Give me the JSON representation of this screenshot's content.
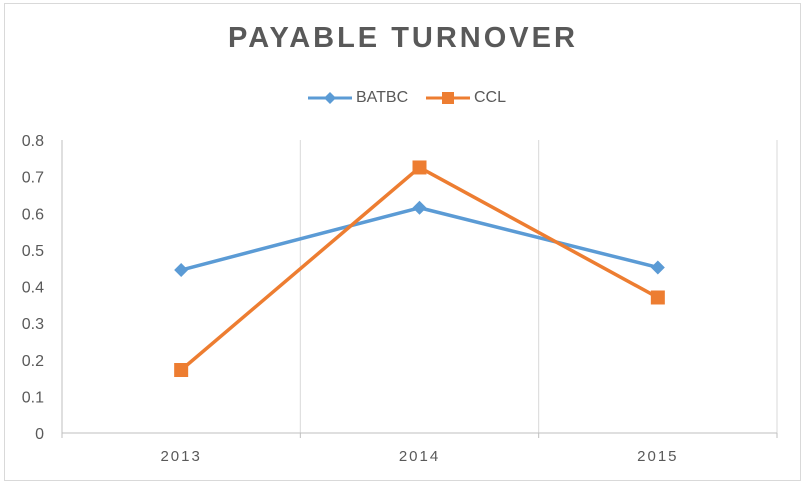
{
  "chart_data": {
    "type": "line",
    "title": "PAYABLE TURNOVER",
    "xlabel": "",
    "ylabel": "",
    "categories": [
      "2013",
      "2014",
      "2015"
    ],
    "ylim": [
      0,
      0.8
    ],
    "yticks": [
      "0",
      "0.1",
      "0.2",
      "0.3",
      "0.4",
      "0.5",
      "0.6",
      "0.7",
      "0.8"
    ],
    "grid": "vertical",
    "legend_position": "top",
    "series": [
      {
        "name": "BATBC",
        "values": [
          0.445,
          0.615,
          0.452
        ],
        "color": "#5b9bd5",
        "marker": "diamond"
      },
      {
        "name": "CCL",
        "values": [
          0.172,
          0.725,
          0.37
        ],
        "color": "#ed7d31",
        "marker": "square"
      }
    ]
  }
}
